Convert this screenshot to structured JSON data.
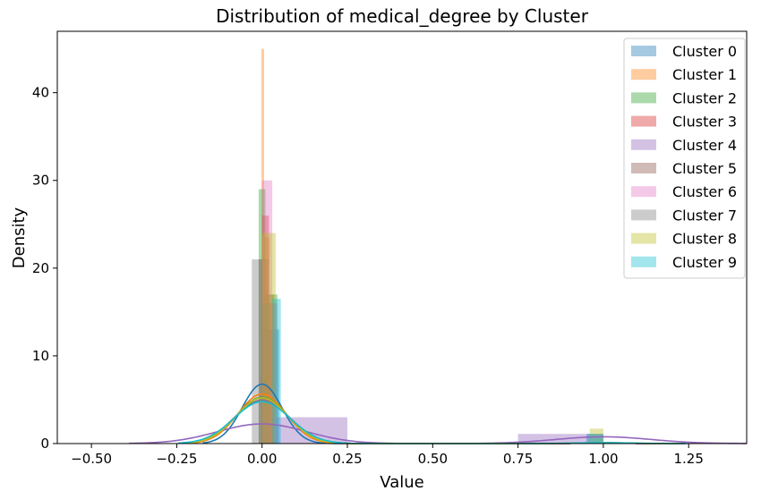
{
  "chart_data": {
    "type": "histogram",
    "title": "Distribution of medical_degree by Cluster",
    "xlabel": "Value",
    "ylabel": "Density",
    "xlim": [
      -0.6,
      1.42
    ],
    "ylim": [
      0,
      47
    ],
    "xticks": [
      -0.5,
      -0.25,
      0.0,
      0.25,
      0.5,
      0.75,
      1.0,
      1.25
    ],
    "xtick_labels": [
      "−0.50",
      "−0.25",
      "0.00",
      "0.25",
      "0.50",
      "0.75",
      "1.00",
      "1.25"
    ],
    "yticks": [
      0,
      10,
      20,
      30,
      40
    ],
    "ytick_labels": [
      "0",
      "10",
      "20",
      "30",
      "40"
    ],
    "grid": false,
    "legend_position": "top-right",
    "series": [
      {
        "name": "Cluster 0",
        "color": "#1f77b4",
        "bars": [
          [
            0.0,
            0.05,
            13
          ],
          [
            0.95,
            1.0,
            1.1
          ]
        ],
        "kde": {
          "mean": 0.0,
          "sd": 0.058,
          "w_low": 0.985,
          "w_high": 0.015
        }
      },
      {
        "name": "Cluster 1",
        "color": "#ff7f0e",
        "bars": [
          [
            -0.002,
            0.006,
            45
          ],
          [
            0.006,
            0.022,
            23.5
          ]
        ],
        "kde": {
          "mean": 0.0,
          "sd": 0.07,
          "w_low": 0.99,
          "w_high": 0.01
        }
      },
      {
        "name": "Cluster 2",
        "color": "#2ca02c",
        "bars": [
          [
            -0.01,
            0.01,
            29
          ],
          [
            0.01,
            0.045,
            17
          ]
        ],
        "kde": {
          "mean": 0.0,
          "sd": 0.075,
          "w_low": 0.99,
          "w_high": 0.01
        }
      },
      {
        "name": "Cluster 3",
        "color": "#d62728",
        "bars": [
          [
            0.0,
            0.02,
            26
          ],
          [
            0.02,
            0.04,
            16
          ]
        ],
        "kde": {
          "mean": 0.0,
          "sd": 0.08,
          "w_low": 0.99,
          "w_high": 0.01
        }
      },
      {
        "name": "Cluster 4",
        "color": "#9467bd",
        "bars": [
          [
            0.0,
            0.25,
            3
          ],
          [
            0.75,
            1.0,
            1.1
          ]
        ],
        "kde": {
          "mean_low": 0.0,
          "sd_low": 0.13,
          "mean_high": 1.0,
          "sd_high": 0.14,
          "w_low": 0.73,
          "w_high": 0.27
        }
      },
      {
        "name": "Cluster 5",
        "color": "#8c564b",
        "bars": [
          [
            -0.01,
            0.02,
            21
          ],
          [
            0.02,
            0.035,
            17
          ]
        ],
        "kde": {
          "mean": 0.0,
          "sd": 0.08,
          "w_low": 0.99,
          "w_high": 0.01
        }
      },
      {
        "name": "Cluster 6",
        "color": "#e377c2",
        "bars": [
          [
            0.0,
            0.03,
            30
          ],
          [
            0.03,
            0.045,
            16
          ]
        ],
        "kde": {
          "mean": 0.0,
          "sd": 0.08,
          "w_low": 0.99,
          "w_high": 0.01
        }
      },
      {
        "name": "Cluster 7",
        "color": "#7f7f7f",
        "bars": [
          [
            -0.03,
            0.0,
            21
          ],
          [
            0.0,
            0.02,
            16
          ]
        ],
        "kde": {
          "mean": 0.0,
          "sd": 0.08,
          "w_low": 0.99,
          "w_high": 0.01
        }
      },
      {
        "name": "Cluster 8",
        "color": "#bcbd22",
        "bars": [
          [
            0.0,
            0.04,
            24
          ],
          [
            0.96,
            1.0,
            1.7
          ]
        ],
        "kde": {
          "mean": 0.0,
          "sd": 0.075,
          "w_low": 0.98,
          "w_high": 0.02
        }
      },
      {
        "name": "Cluster 9",
        "color": "#17becf",
        "bars": [
          [
            0.03,
            0.055,
            16.5
          ],
          [
            0.955,
            1.0,
            1.1
          ]
        ],
        "kde": {
          "mean": 0.0,
          "sd": 0.082,
          "w_low": 0.98,
          "w_high": 0.02
        }
      }
    ]
  }
}
